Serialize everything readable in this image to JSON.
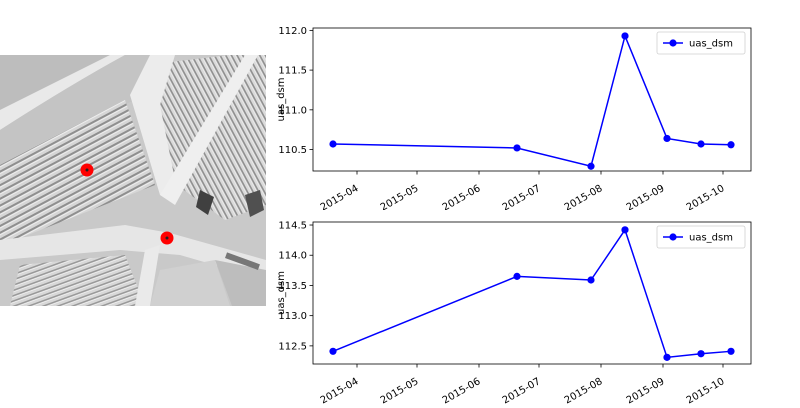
{
  "map": {
    "markers": [
      {
        "name": "point-1",
        "color": "#ff0000"
      },
      {
        "name": "point-2",
        "color": "#ff0000"
      }
    ]
  },
  "chart_data": [
    {
      "type": "line",
      "ylabel": "uas_dsm",
      "legend": "top-right",
      "xlim": [
        "2015-03-10",
        "2015-10-15"
      ],
      "ylim": [
        110.23,
        112.03
      ],
      "yticks": [
        "110.5",
        "111.0",
        "111.5",
        "112.0"
      ],
      "xticks": [
        "2015-04",
        "2015-05",
        "2015-06",
        "2015-07",
        "2015-08",
        "2015-09",
        "2015-10"
      ],
      "series": [
        {
          "name": "uas_dsm",
          "color": "#0000ff",
          "x": [
            "2015-03-20",
            "2015-06-20",
            "2015-07-27",
            "2015-08-13",
            "2015-09-03",
            "2015-09-20",
            "2015-10-05"
          ],
          "y": [
            110.57,
            110.52,
            110.29,
            111.93,
            110.64,
            110.57,
            110.56
          ]
        }
      ]
    },
    {
      "type": "line",
      "ylabel": "uas_dsm",
      "legend": "top-right",
      "xlim": [
        "2015-03-10",
        "2015-10-15"
      ],
      "ylim": [
        112.2,
        114.55
      ],
      "yticks": [
        "112.5",
        "113.0",
        "113.5",
        "114.0",
        "114.5"
      ],
      "xticks": [
        "2015-04",
        "2015-05",
        "2015-06",
        "2015-07",
        "2015-08",
        "2015-09",
        "2015-10"
      ],
      "series": [
        {
          "name": "uas_dsm",
          "color": "#0000ff",
          "x": [
            "2015-03-20",
            "2015-06-20",
            "2015-07-27",
            "2015-08-13",
            "2015-09-03",
            "2015-09-20",
            "2015-10-05"
          ],
          "y": [
            112.41,
            113.65,
            113.59,
            114.42,
            112.31,
            112.37,
            112.41
          ]
        }
      ]
    }
  ]
}
